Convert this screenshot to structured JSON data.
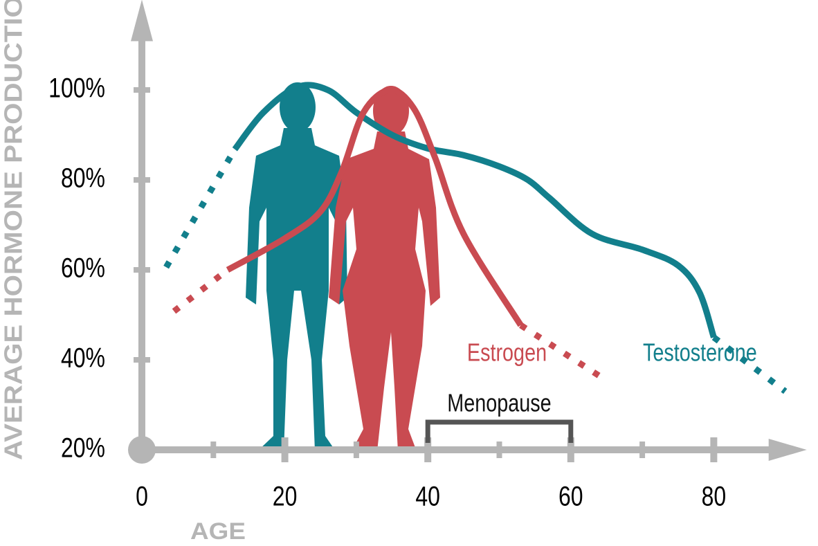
{
  "chart_data": {
    "type": "line",
    "ylabel": "AVERAGE HORMONE PRODUCTION",
    "xlabel": "AGE",
    "xlim": [
      0,
      93
    ],
    "ylim": [
      20,
      117
    ],
    "xticks": [
      0,
      20,
      40,
      60,
      80
    ],
    "xminor_ticks": [
      10,
      30,
      50,
      70
    ],
    "yticks": [
      {
        "value": 20,
        "label": "20%"
      },
      {
        "value": 40,
        "label": "40%"
      },
      {
        "value": 60,
        "label": "60%"
      },
      {
        "value": 80,
        "label": "80%"
      },
      {
        "value": 100,
        "label": "100%"
      }
    ],
    "axis_color": "#b5b5b5",
    "series": [
      {
        "name": "Testosterone",
        "color": "#127f8c",
        "linestyle": "solid",
        "x": [
          13,
          17,
          21.8,
          26,
          30,
          35,
          40,
          45,
          50,
          54,
          57,
          63,
          70,
          75,
          78,
          80
        ],
        "values": [
          86.8,
          95,
          100.7,
          100,
          95,
          90,
          87,
          85.5,
          83,
          80,
          76,
          68,
          64.5,
          61,
          55,
          45
        ]
      },
      {
        "color": "#127f8c",
        "linestyle": "dotted",
        "x": [
          3.4,
          13,
          null,
          80,
          90
        ],
        "values": [
          60.6,
          86.8,
          null,
          45,
          33
        ]
      },
      {
        "name": "Estrogen",
        "color": "#c94b51",
        "linestyle": "solid",
        "x": [
          12,
          20,
          25,
          28,
          31,
          34.7,
          38,
          41,
          45,
          53
        ],
        "values": [
          60,
          67,
          73,
          82,
          95,
          100,
          96,
          85,
          68,
          47.7
        ]
      },
      {
        "color": "#c94b51",
        "linestyle": "dotted",
        "x": [
          4.5,
          12,
          null,
          53,
          65
        ],
        "values": [
          50.8,
          60,
          null,
          47.7,
          35.4
        ]
      }
    ],
    "annotations": [
      {
        "text": "Menopause",
        "x_range": [
          40,
          60
        ],
        "color": "#555555"
      }
    ]
  }
}
